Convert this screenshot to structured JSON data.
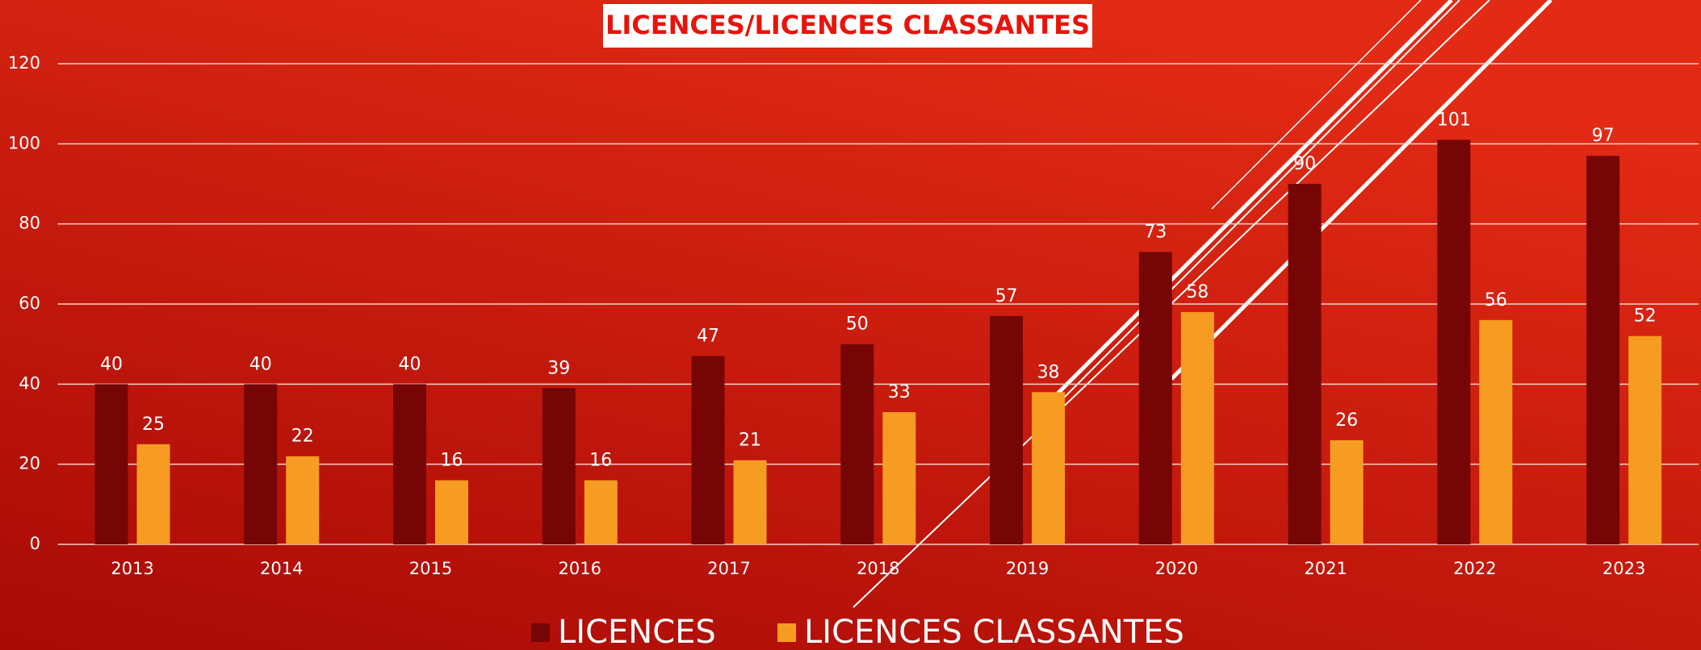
{
  "chart_data": {
    "type": "bar",
    "title": "LICENCES/LICENCES CLASSANTES",
    "categories": [
      "2013",
      "2014",
      "2015",
      "2016",
      "2017",
      "2018",
      "2019",
      "2020",
      "2021",
      "2022",
      "2023"
    ],
    "series": [
      {
        "name": "LICENCES",
        "color": "#760606",
        "values": [
          40,
          40,
          40,
          39,
          47,
          50,
          57,
          73,
          90,
          101,
          97
        ]
      },
      {
        "name": "LICENCES CLASSANTES",
        "color": "#f79c22",
        "values": [
          25,
          22,
          16,
          16,
          21,
          33,
          38,
          58,
          26,
          56,
          52
        ]
      }
    ],
    "ylim": [
      0,
      120
    ],
    "yticks": [
      0,
      20,
      40,
      60,
      80,
      100,
      120
    ],
    "grid": true,
    "legend": "bottom"
  }
}
